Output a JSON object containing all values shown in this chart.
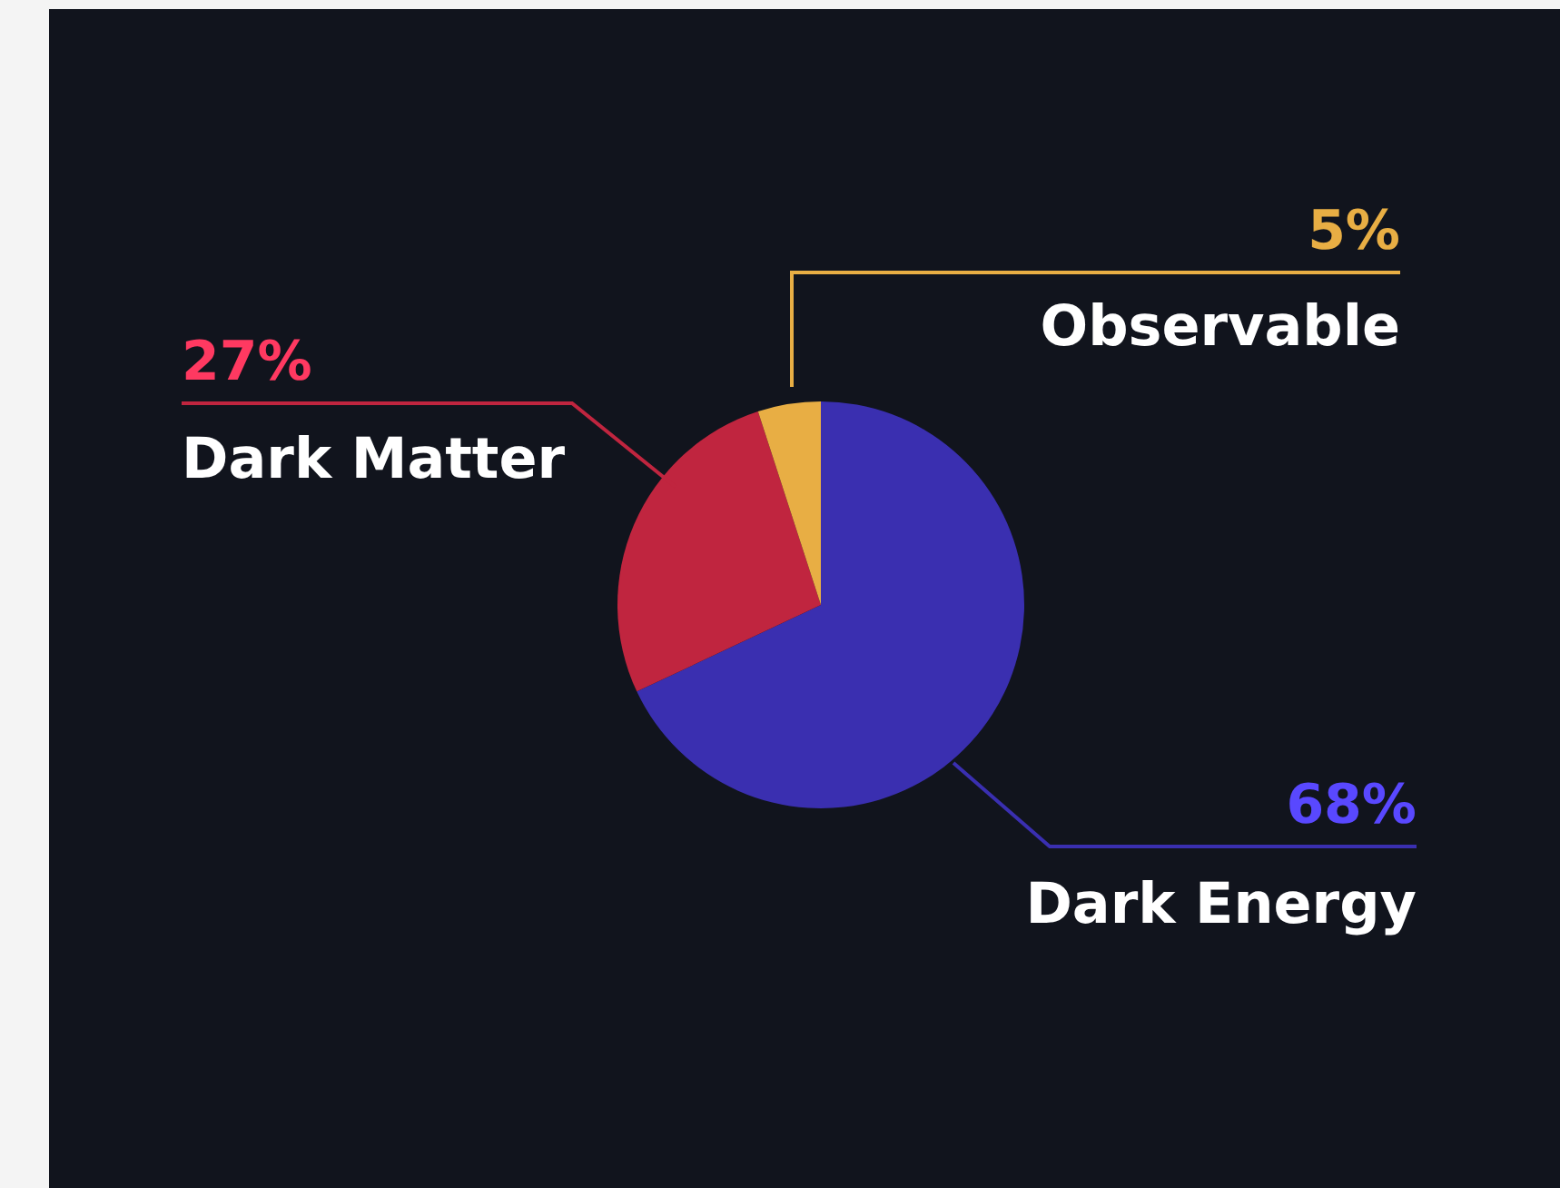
{
  "chart_data": {
    "type": "pie",
    "categories": [
      "Dark Energy",
      "Dark Matter",
      "Observable"
    ],
    "values": [
      68,
      27,
      5
    ],
    "value_labels": [
      "68%",
      "27%",
      "5%"
    ],
    "colors": [
      "#3a2fb0",
      "#c0253f",
      "#e8ae44"
    ],
    "legend": false
  }
}
